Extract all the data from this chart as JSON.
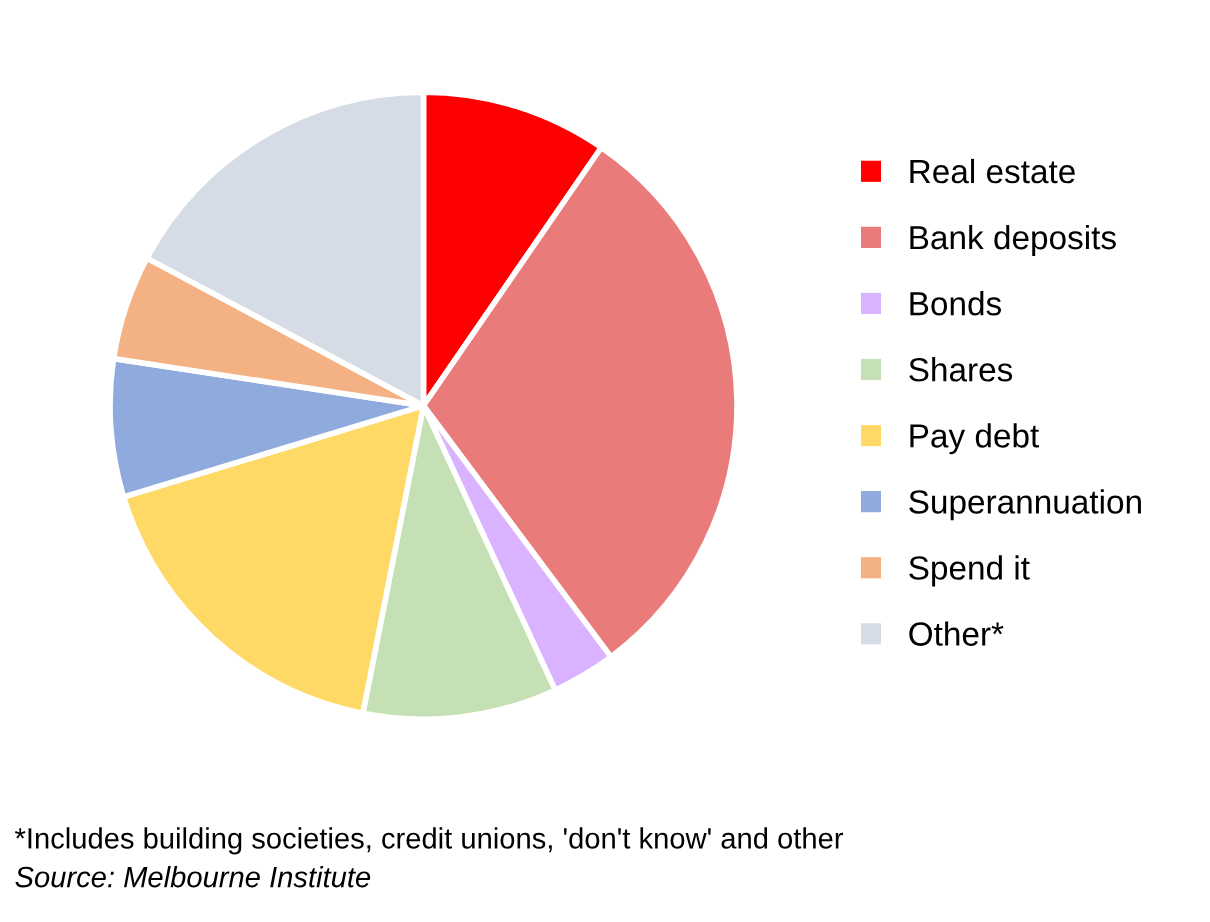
{
  "chart_data": {
    "type": "pie",
    "categories": [
      "Real estate",
      "Bank deposits",
      "Bonds",
      "Shares",
      "Pay debt",
      "Superannuation",
      "Spend it",
      "Other*"
    ],
    "values": [
      9.6,
      30.2,
      3.3,
      10.0,
      17.2,
      7.1,
      5.4,
      17.2
    ],
    "colors": [
      "#ff0000",
      "#e97b7b",
      "#d9b3ff",
      "#c5e0b4",
      "#ffd966",
      "#8faadc",
      "#f4b183",
      "#d6dce5"
    ],
    "legend": "right",
    "annotations": [
      "*Includes building societies, credit unions, 'don't know' and other",
      "Source: Melbourne Institute"
    ]
  }
}
